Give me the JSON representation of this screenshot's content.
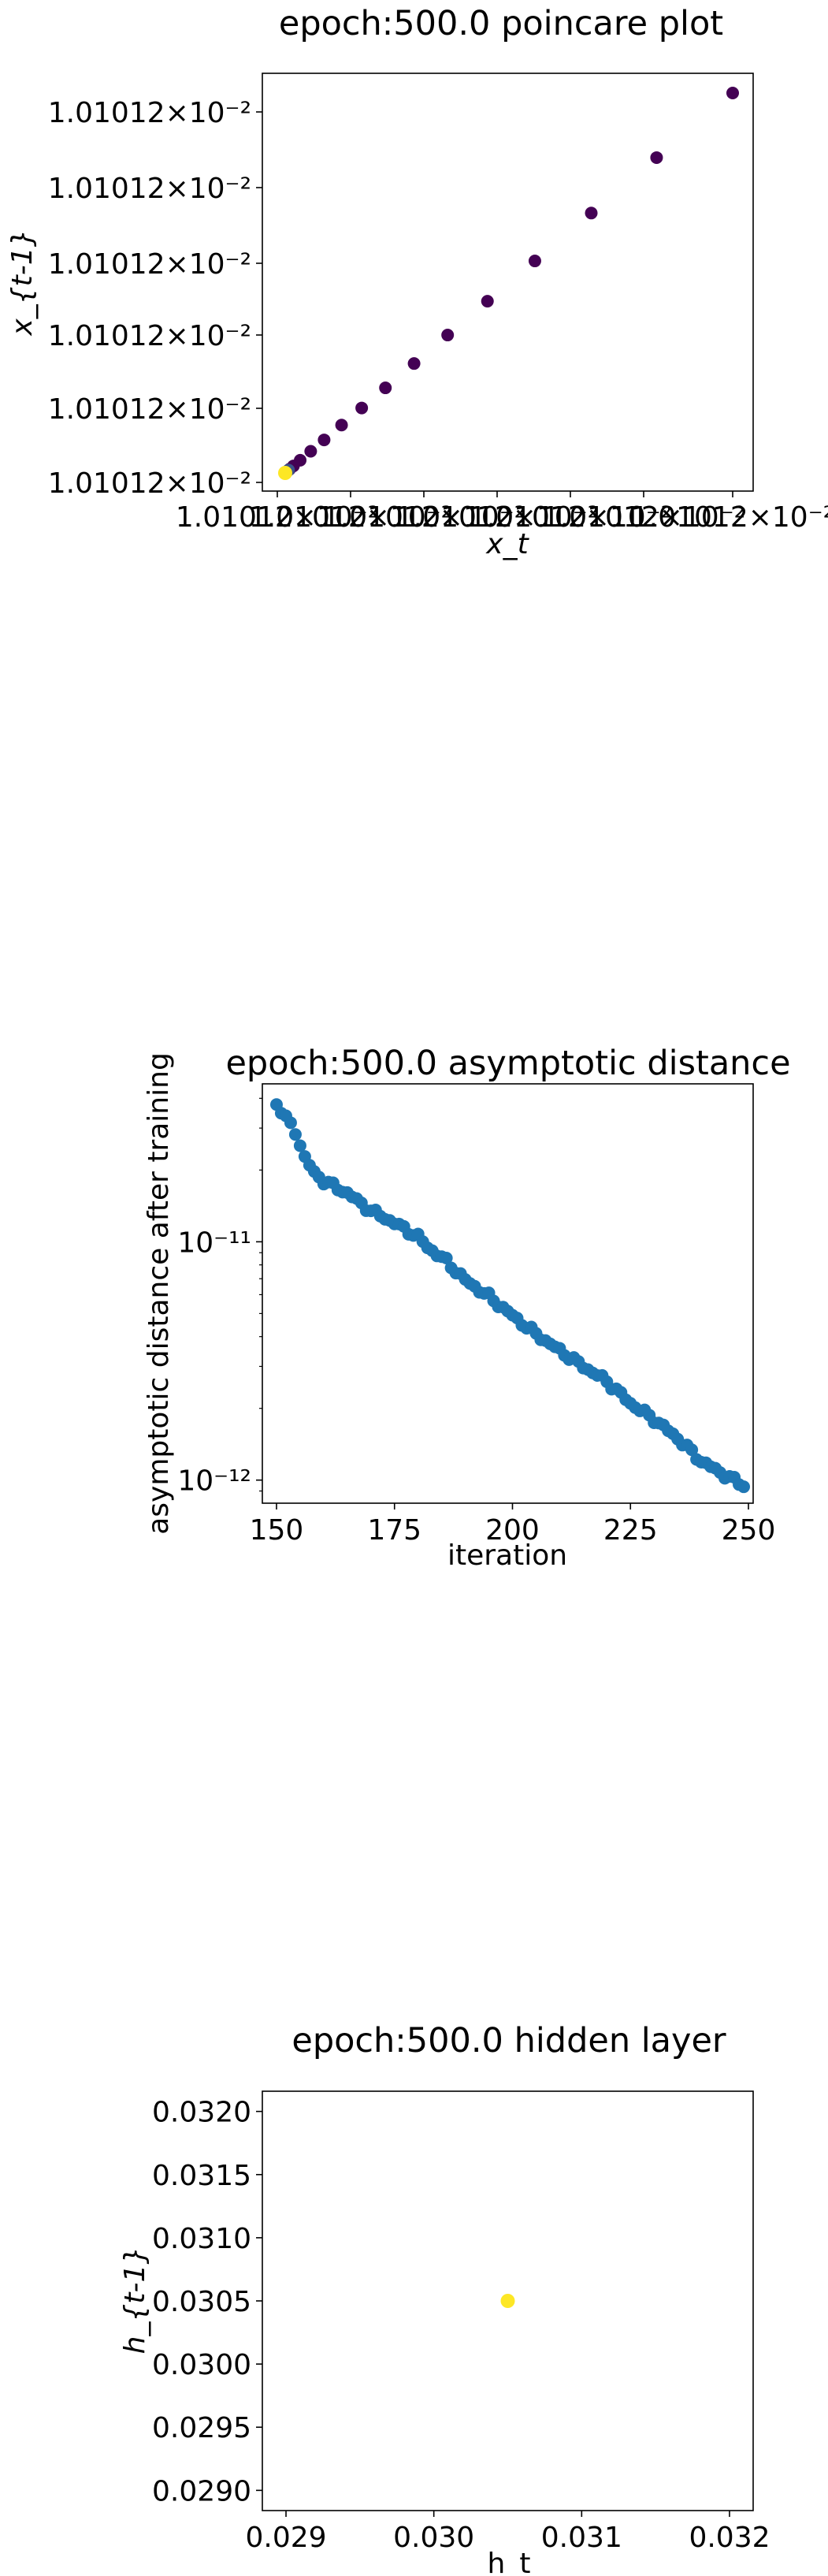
{
  "chart_data": [
    {
      "type": "scatter",
      "title": "epoch:500.0 poincare plot",
      "xlabel": "x_t",
      "ylabel": "x_{t-1}",
      "xtick_labels": [
        "1.01012×10⁻²",
        "1.01012×10⁻²",
        "1.01012×10⁻²",
        "1.01012×10⁻²",
        "1.01012×10⁻²",
        "1.01012×10⁻²",
        "1.01012×10⁻²"
      ],
      "ytick_labels": [
        "1.01012×10⁻²",
        "1.01012×10⁻²",
        "1.01012×10⁻²",
        "1.01012×10⁻²",
        "1.01012×10⁻²",
        "1.01012×10⁻²"
      ],
      "x": [
        1.0,
        1.85,
        3.35,
        5.7,
        8.7,
        12.6,
        17.1,
        22.4,
        28.8,
        36.3,
        45.2,
        55.8,
        68.4,
        83.0,
        100.0
      ],
      "y": [
        1.0,
        1.85,
        3.35,
        5.7,
        8.7,
        12.6,
        17.1,
        22.4,
        28.8,
        36.3,
        45.2,
        55.8,
        68.4,
        83.0,
        100.0
      ],
      "value_note": "relative scale; all ticks print 1.01012×10⁻²",
      "colors": [
        "#440154"
      ],
      "final_point_color": "#fde725"
    },
    {
      "type": "scatter",
      "title": "epoch:500.0 asymptotic distance",
      "xlabel": "iteration",
      "ylabel": "asymptotic distance after training",
      "y_scale": "log",
      "xlim": [
        147,
        251
      ],
      "ylim": [
        8e-13,
        4.6e-11
      ],
      "xticks": [
        150,
        175,
        200,
        225,
        250
      ],
      "xtick_labels": [
        "150",
        "175",
        "200",
        "225",
        "250"
      ],
      "yticks": [
        1e-12,
        1e-11
      ],
      "ytick_labels": [
        "10⁻¹²",
        "10⁻¹¹"
      ],
      "x_start": 150,
      "y_knots": [
        [
          150,
          3.8e-11
        ],
        [
          152,
          3.3e-11
        ],
        [
          154,
          2.9e-11
        ],
        [
          156,
          2.25e-11
        ],
        [
          158,
          1.95e-11
        ],
        [
          160,
          1.8e-11
        ],
        [
          165,
          1.6e-11
        ],
        [
          170,
          1.35e-11
        ],
        [
          175,
          1.2e-11
        ],
        [
          180,
          1.05e-11
        ],
        [
          182,
          9.5e-12
        ],
        [
          186,
          8.3e-12
        ],
        [
          190,
          6.9e-12
        ],
        [
          195,
          5.9e-12
        ],
        [
          200,
          4.9e-12
        ],
        [
          205,
          4.1e-12
        ],
        [
          210,
          3.5e-12
        ],
        [
          215,
          3e-12
        ],
        [
          220,
          2.6e-12
        ],
        [
          225,
          2.1e-12
        ],
        [
          230,
          1.8e-12
        ],
        [
          235,
          1.5e-12
        ],
        [
          240,
          1.2e-12
        ],
        [
          245,
          1.05e-12
        ],
        [
          249,
          9.5e-13
        ]
      ],
      "color": "#1f77b4"
    },
    {
      "type": "scatter",
      "title": "epoch:500.0 hidden layer",
      "xlabel": "h_t",
      "ylabel": "h_{t-1}",
      "xlim": [
        0.02884,
        0.03216
      ],
      "ylim": [
        0.02884,
        0.03216
      ],
      "xticks": [
        0.029,
        0.03,
        0.031,
        0.032
      ],
      "xtick_labels": [
        "0.029",
        "0.030",
        "0.031",
        "0.032"
      ],
      "yticks": [
        0.029,
        0.0295,
        0.03,
        0.0305,
        0.031,
        0.0315,
        0.032
      ],
      "ytick_labels": [
        "0.0290",
        "0.0295",
        "0.0300",
        "0.0305",
        "0.0310",
        "0.0315",
        "0.0320"
      ],
      "x": [
        0.0305
      ],
      "y": [
        0.0305
      ],
      "color": "#fde725"
    }
  ]
}
